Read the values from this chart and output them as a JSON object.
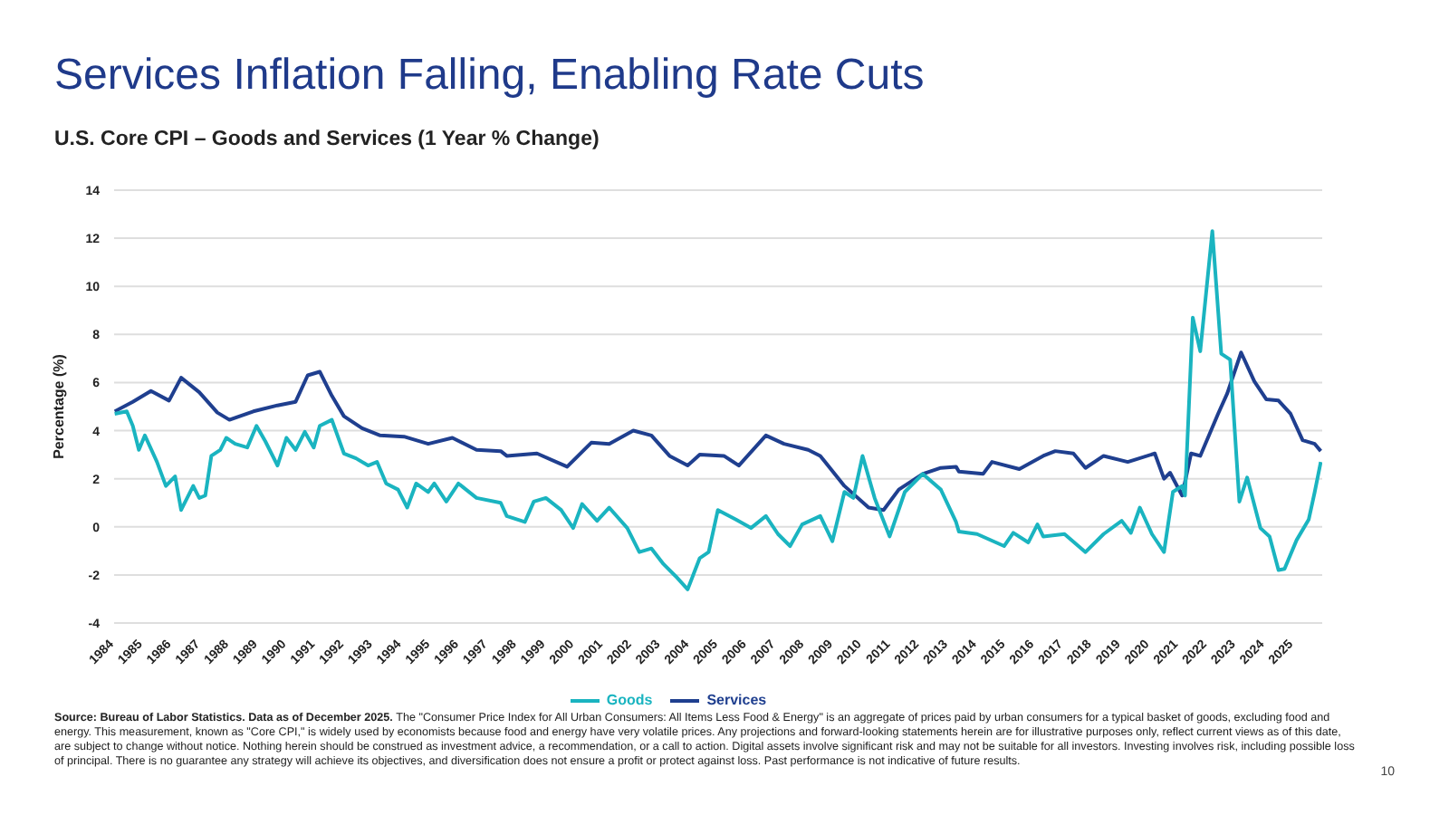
{
  "chart_data": {
    "type": "line",
    "title": "Services Inflation Falling, Enabling Rate Cuts",
    "subtitle": "U.S. Core CPI – Goods and Services (1 Year % Change)",
    "ylabel": "Percentage (%)",
    "xlim": [
      1984,
      2026
    ],
    "xticks": [
      1984,
      1985,
      1986,
      1987,
      1988,
      1989,
      1990,
      1991,
      1992,
      1993,
      1994,
      1995,
      1996,
      1997,
      1998,
      1999,
      2000,
      2001,
      2002,
      2003,
      2004,
      2005,
      2006,
      2007,
      2008,
      2009,
      2010,
      2011,
      2012,
      2013,
      2014,
      2015,
      2016,
      2017,
      2018,
      2019,
      2020,
      2021,
      2022,
      2023,
      2024,
      2025
    ],
    "ylim": [
      -4,
      14
    ],
    "yticks": [
      -4,
      -2,
      0,
      2,
      4,
      6,
      8,
      10,
      12,
      14
    ],
    "grid": "y",
    "legend": "bottom",
    "marker": "none",
    "line_style": "solid",
    "series": [
      {
        "name": "Services",
        "color": "#1f3f8f",
        "x": [
          1984.02,
          1984.65,
          1985.28,
          1985.91,
          1986.33,
          1986.96,
          1987.59,
          1988.01,
          1988.84,
          1989.68,
          1990.31,
          1990.73,
          1991.15,
          1991.57,
          1991.99,
          1992.62,
          1993.25,
          1994.08,
          1994.92,
          1995.76,
          1996.6,
          1997.44,
          1997.65,
          1998.7,
          1999.75,
          2000.59,
          2001.21,
          2002.05,
          2002.68,
          2003.31,
          2003.94,
          2004.36,
          2005.2,
          2005.72,
          2006.66,
          2007.29,
          2008.13,
          2008.55,
          2009.39,
          2010.23,
          2010.75,
          2011.28,
          2012.11,
          2012.74,
          2013.27,
          2013.37,
          2014.21,
          2014.52,
          2015.47,
          2016.3,
          2016.72,
          2017.35,
          2017.77,
          2018.4,
          2019.24,
          2020.18,
          2020.5,
          2020.71,
          2021.13,
          2021.44,
          2021.76,
          2022.38,
          2022.7,
          2023.18,
          2023.64,
          2024.06,
          2024.48,
          2024.9,
          2025.32,
          2025.74,
          2025.95
        ],
        "values": [
          4.8,
          5.2,
          5.65,
          5.25,
          6.2,
          5.6,
          4.75,
          4.45,
          4.8,
          5.05,
          5.2,
          6.3,
          6.45,
          5.45,
          4.6,
          4.1,
          3.8,
          3.75,
          3.45,
          3.7,
          3.2,
          3.15,
          2.95,
          3.05,
          2.5,
          3.5,
          3.45,
          4.0,
          3.8,
          2.95,
          2.55,
          3.0,
          2.95,
          2.55,
          3.8,
          3.45,
          3.2,
          2.95,
          1.7,
          0.8,
          0.7,
          1.55,
          2.2,
          2.45,
          2.5,
          2.3,
          2.2,
          2.7,
          2.4,
          2.95,
          3.15,
          3.05,
          2.45,
          2.95,
          2.7,
          3.05,
          2.0,
          2.25,
          1.3,
          3.05,
          2.95,
          4.7,
          5.55,
          7.25,
          6.05,
          5.3,
          5.25,
          4.7,
          3.6,
          3.45,
          3.15
        ]
      },
      {
        "name": "Goods",
        "color": "#1ab4c0",
        "x": [
          1984.02,
          1984.44,
          1984.65,
          1984.86,
          1985.07,
          1985.49,
          1985.8,
          1986.12,
          1986.33,
          1986.75,
          1986.96,
          1987.17,
          1987.38,
          1987.69,
          1987.9,
          1988.21,
          1988.63,
          1988.95,
          1989.26,
          1989.68,
          1989.99,
          1990.31,
          1990.63,
          1990.94,
          1991.15,
          1991.57,
          1991.99,
          1992.41,
          1992.83,
          1993.14,
          1993.46,
          1993.87,
          1994.19,
          1994.5,
          1994.92,
          1995.13,
          1995.55,
          1995.97,
          1996.6,
          1997.44,
          1997.65,
          1998.28,
          1998.59,
          1999.01,
          1999.54,
          1999.96,
          2000.27,
          2000.79,
          2001.21,
          2001.84,
          2002.26,
          2002.68,
          2003.1,
          2003.52,
          2003.94,
          2004.36,
          2004.67,
          2004.99,
          2005.62,
          2006.14,
          2006.66,
          2007.08,
          2007.5,
          2007.92,
          2008.55,
          2008.97,
          2009.39,
          2009.7,
          2010.02,
          2010.44,
          2010.96,
          2011.49,
          2012.11,
          2012.74,
          2013.27,
          2013.37,
          2014.0,
          2014.94,
          2015.26,
          2015.78,
          2016.1,
          2016.3,
          2017.04,
          2017.77,
          2018.4,
          2019.03,
          2019.35,
          2019.66,
          2020.08,
          2020.5,
          2020.81,
          2021.13,
          2021.23,
          2021.5,
          2021.76,
          2022.18,
          2022.49,
          2022.8,
          2023.12,
          2023.39,
          2023.85,
          2024.17,
          2024.48,
          2024.69,
          2025.11,
          2025.53,
          2025.74,
          2025.95
        ],
        "values": [
          4.7,
          4.8,
          4.2,
          3.2,
          3.8,
          2.7,
          1.7,
          2.1,
          0.7,
          1.7,
          1.2,
          1.3,
          2.95,
          3.2,
          3.7,
          3.45,
          3.3,
          4.2,
          3.55,
          2.55,
          3.7,
          3.2,
          3.95,
          3.3,
          4.2,
          4.45,
          3.05,
          2.85,
          2.55,
          2.7,
          1.8,
          1.55,
          0.8,
          1.8,
          1.45,
          1.8,
          1.05,
          1.8,
          1.2,
          1.0,
          0.45,
          0.2,
          1.05,
          1.2,
          0.7,
          -0.05,
          0.95,
          0.25,
          0.8,
          -0.05,
          -1.05,
          -0.9,
          -1.55,
          -2.05,
          -2.6,
          -1.3,
          -1.05,
          0.7,
          0.3,
          -0.05,
          0.45,
          -0.3,
          -0.8,
          0.1,
          0.45,
          -0.6,
          1.45,
          1.2,
          2.95,
          1.2,
          -0.4,
          1.45,
          2.2,
          1.55,
          0.2,
          -0.2,
          -0.3,
          -0.8,
          -0.25,
          -0.65,
          0.1,
          -0.4,
          -0.3,
          -1.05,
          -0.3,
          0.25,
          -0.25,
          0.8,
          -0.3,
          -1.05,
          1.45,
          1.7,
          1.3,
          8.7,
          7.3,
          12.3,
          7.2,
          6.95,
          1.05,
          2.05,
          -0.05,
          -0.4,
          -1.8,
          -1.75,
          -0.55,
          0.3,
          1.45,
          2.7
        ]
      }
    ],
    "annotations": [
      "Source: Bureau of Labor Statistics. Data as of December 2025.",
      "The \"Consumer Price Index for All Urban Consumers: All Items Less Food & Energy\" is an aggregate of prices paid by urban consumers for a typical basket of goods, excluding food and energy. This measurement, known as \"Core CPI,\" is widely used by economists because food and energy have very volatile prices. Any projections and forward-looking statements herein are for illustrative purposes only, reflect current views as of this date, are subject to change without notice. Nothing herein should be construed as investment advice, a recommendation, or a call to action. Digital assets involve significant risk and may not be suitable for all investors. Investing involves risk, including possible loss of principal. There is no guarantee any strategy will achieve its objectives, and diversification does not ensure a profit or protect against loss. Past performance is not indicative of future results.",
      "10"
    ]
  }
}
